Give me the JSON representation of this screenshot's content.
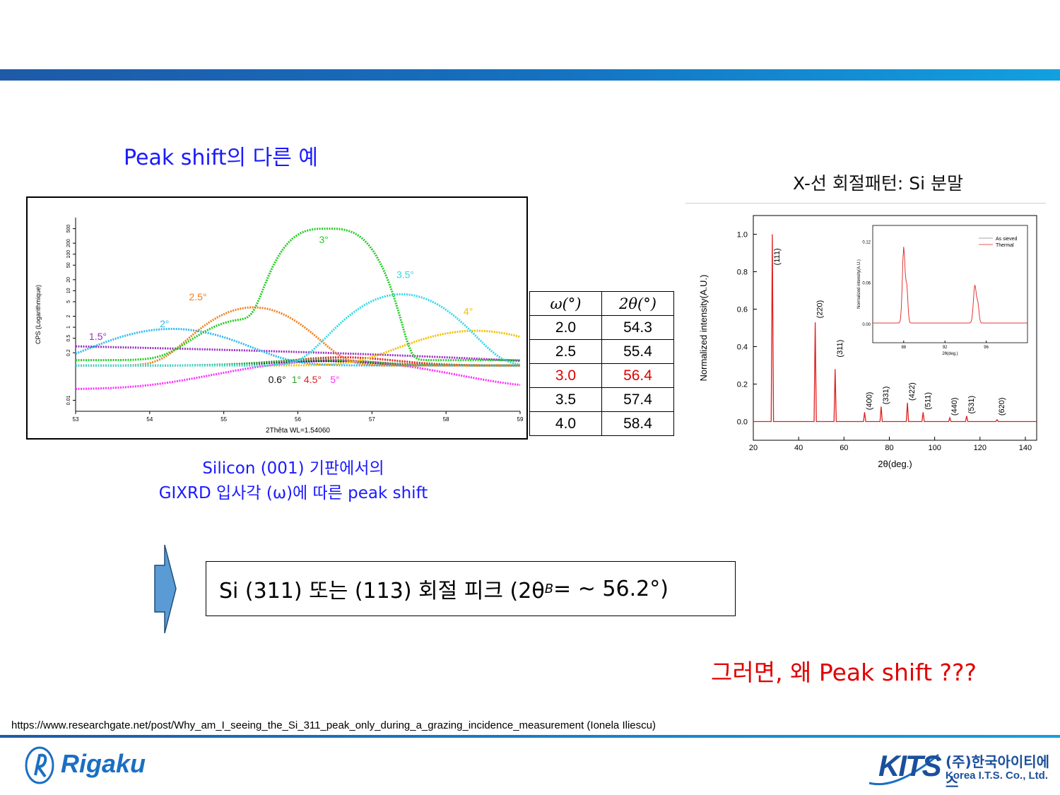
{
  "slide": {
    "title": "Peak shift의 다른 예",
    "xrd_title": "X-선 회절패턴: Si 분말",
    "caption_line1": "Silicon (001) 기판에서의",
    "caption_line2": "GIXRD 입사각 (ω)에 따른 peak shift",
    "formula": "Si (311) 또는 (113) 회절 피크 (2θ",
    "formula_sub": "B",
    "formula_tail": " = ~ 56.2°)",
    "question": "그러면, 왜 Peak shift ???",
    "reference": "https://www.researchgate.net/post/Why_am_I_seeing_the_Si_311_peak_only_during_a_grazing_incidence_measurement (Ionela Iliescu)"
  },
  "table": {
    "headers": [
      "ω(°)",
      "2θ(°)"
    ],
    "rows": [
      [
        "2.0",
        "54.3"
      ],
      [
        "2.5",
        "55.4"
      ],
      [
        "3.0",
        "56.4"
      ],
      [
        "3.5",
        "57.4"
      ],
      [
        "4.0",
        "58.4"
      ]
    ],
    "highlight_row": 2,
    "highlight_color": "#e00000"
  },
  "logos": {
    "left": "Rigaku",
    "right": "KITS",
    "right_kr": "(주)한국아이티에스",
    "right_en": "Korea I.T.S. Co., Ltd."
  },
  "colors": {
    "accent_blue": "#1a1aff",
    "highlight_red": "#e00000",
    "bar_blue": "#1570c0"
  },
  "chart_data": [
    {
      "type": "scatter",
      "xlabel": "2Thêta WL=1.54060",
      "ylabel": "CPS (Logarithmique)",
      "x_ticks": [
        "53",
        "54",
        "55",
        "56",
        "57",
        "58",
        "59"
      ],
      "y_ticks": [
        "0.01",
        "0.2",
        "0.5",
        "1",
        "2",
        "5",
        "10",
        "20",
        "50",
        "100",
        "200",
        "500"
      ],
      "xlim": [
        53,
        59
      ],
      "y_scale": "log",
      "series": [
        {
          "name": "0.6°",
          "color": "#111111",
          "peak_x": 56.3,
          "peak_y": 0.12
        },
        {
          "name": "1°",
          "color": "#2ca02c",
          "peak_x": 56.3,
          "peak_y": 0.13
        },
        {
          "name": "1.5°",
          "color": "#9b30c0",
          "peak_x": 53.8,
          "peak_y": 0.3
        },
        {
          "name": "2°",
          "color": "#30b8f0",
          "peak_x": 54.3,
          "peak_y": 0.9
        },
        {
          "name": "2.5°",
          "color": "#f08020",
          "peak_x": 55.4,
          "peak_y": 3.5
        },
        {
          "name": "3°",
          "color": "#22cc22",
          "peak_x": 56.4,
          "peak_y": 500
        },
        {
          "name": "3.5°",
          "color": "#30d8e8",
          "peak_x": 57.4,
          "peak_y": 8
        },
        {
          "name": "4°",
          "color": "#f0c000",
          "peak_x": 58.4,
          "peak_y": 0.8
        },
        {
          "name": "4.5°",
          "color": "#e02020",
          "peak_x": 56.6,
          "peak_y": 0.15
        },
        {
          "name": "5°",
          "color": "#ff30ff",
          "peak_x": 56.5,
          "peak_y": 0.12
        }
      ]
    },
    {
      "type": "line",
      "xlabel": "2θ(deg.)",
      "ylabel": "Normalized intensity(A.U.)",
      "xlim": [
        20,
        145
      ],
      "ylim": [
        -0.1,
        1.1
      ],
      "x_ticks": [
        "20",
        "40",
        "60",
        "80",
        "100",
        "120",
        "140"
      ],
      "y_ticks": [
        "0.0",
        "0.2",
        "0.4",
        "0.6",
        "0.8",
        "1.0"
      ],
      "peaks": [
        {
          "label": "(111)",
          "x": 28.4,
          "y": 1.0
        },
        {
          "label": "(220)",
          "x": 47.3,
          "y": 0.53
        },
        {
          "label": "(311)",
          "x": 56.1,
          "y": 0.28
        },
        {
          "label": "(400)",
          "x": 69.1,
          "y": 0.05
        },
        {
          "label": "(331)",
          "x": 76.4,
          "y": 0.08
        },
        {
          "label": "(422)",
          "x": 88.0,
          "y": 0.1
        },
        {
          "label": "(511)",
          "x": 94.9,
          "y": 0.05
        },
        {
          "label": "(440)",
          "x": 106.7,
          "y": 0.02
        },
        {
          "label": "(531)",
          "x": 114.1,
          "y": 0.03
        },
        {
          "label": "(620)",
          "x": 127.5,
          "y": 0.01
        }
      ],
      "inset": {
        "xlabel": "2θ(deg.)",
        "ylabel": "Normalized intensity(A.U.)",
        "x_ticks": [
          "88",
          "92",
          "96"
        ],
        "y_ticks": [
          "0.00",
          "0.06",
          "0.12"
        ],
        "legend": [
          "As sieved",
          "Thermal"
        ]
      }
    }
  ]
}
